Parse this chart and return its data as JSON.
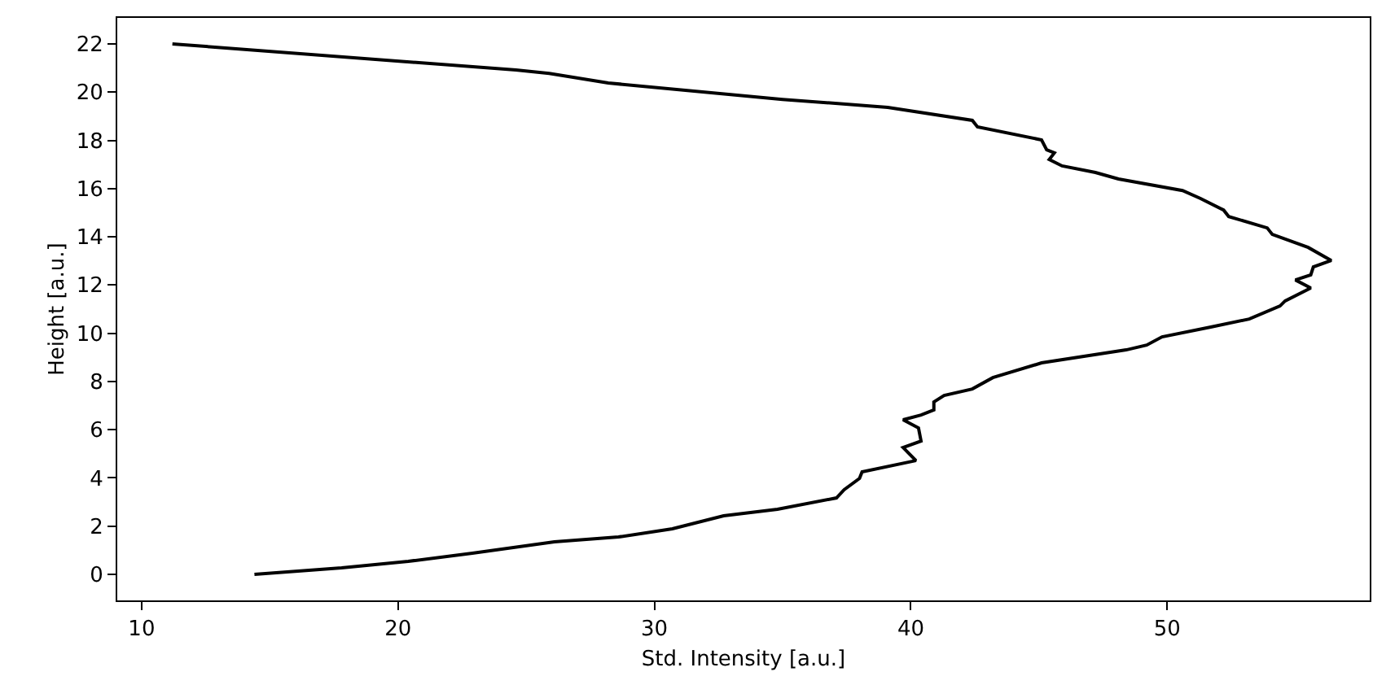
{
  "chart_data": {
    "type": "line",
    "xlabel": "Std. Intensity [a.u.]",
    "ylabel": "Height [a.u.]",
    "xlim": [
      9.05,
      57.9
    ],
    "ylim": [
      -1.08,
      23.08
    ],
    "xticks": [
      10,
      20,
      30,
      40,
      50
    ],
    "yticks": [
      0,
      2,
      4,
      6,
      8,
      10,
      12,
      14,
      16,
      18,
      20,
      22
    ],
    "marker": "none",
    "line_style": "solid",
    "series": [
      {
        "color": "#000000",
        "x": [
          14.4,
          17.8,
          20.4,
          22.9,
          26.1,
          28.6,
          30.7,
          32.7,
          34.8,
          37.1,
          37.4,
          38.0,
          38.1,
          40.2,
          39.7,
          40.4,
          40.3,
          39.7,
          40.4,
          40.9,
          40.9,
          41.3,
          42.4,
          43.2,
          45.1,
          48.4,
          49.2,
          49.8,
          51.7,
          53.2,
          54.4,
          54.6,
          55.6,
          55.0,
          55.6,
          55.7,
          56.4,
          55.5,
          54.1,
          53.9,
          52.4,
          52.2,
          51.3,
          50.6,
          48.1,
          47.2,
          45.9,
          45.4,
          45.6,
          45.3,
          45.1,
          42.6,
          42.4,
          39.1,
          35.0,
          28.2,
          25.9,
          24.6,
          11.2
        ],
        "values": [
          0,
          0.27,
          0.54,
          0.88,
          1.35,
          1.55,
          1.89,
          2.43,
          2.7,
          3.17,
          3.51,
          3.98,
          4.25,
          4.72,
          5.26,
          5.53,
          6.07,
          6.41,
          6.61,
          6.82,
          7.15,
          7.42,
          7.69,
          8.16,
          8.77,
          9.31,
          9.51,
          9.85,
          10.26,
          10.59,
          11.13,
          11.34,
          11.88,
          12.21,
          12.42,
          12.75,
          13.02,
          13.56,
          14.1,
          14.37,
          14.84,
          15.11,
          15.59,
          15.92,
          16.4,
          16.67,
          16.94,
          17.21,
          17.48,
          17.61,
          18.02,
          18.56,
          18.83,
          19.37,
          19.7,
          20.38,
          20.78,
          20.92,
          22.0
        ]
      }
    ]
  }
}
